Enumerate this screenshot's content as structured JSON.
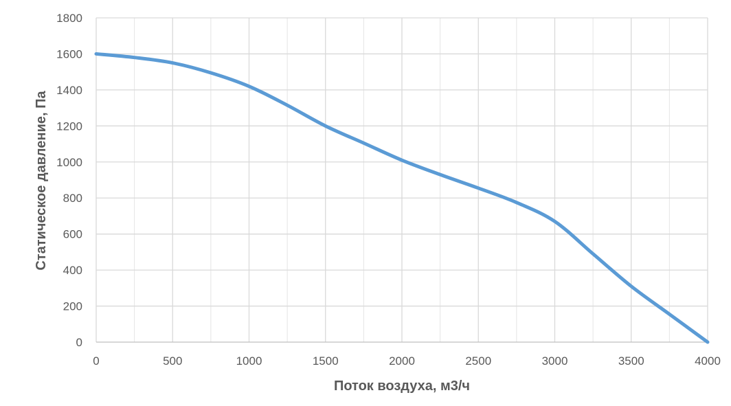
{
  "chart_data": {
    "type": "line",
    "title": "",
    "xlabel": "Поток воздуха, м3/ч",
    "ylabel": "Статическое давление, Па",
    "xlim": [
      0,
      4000
    ],
    "ylim": [
      0,
      1800
    ],
    "x_ticks": [
      0,
      500,
      1000,
      1500,
      2000,
      2500,
      3000,
      3500,
      4000
    ],
    "y_ticks": [
      0,
      200,
      400,
      600,
      800,
      1000,
      1200,
      1400,
      1600,
      1800
    ],
    "x_minor_gridlines": [
      250,
      750,
      1250,
      1750,
      2250,
      2750,
      3250,
      3750
    ],
    "grid": true,
    "legend": "none",
    "series": [
      {
        "color": "#5B9BD5",
        "x": [
          0,
          250,
          500,
          750,
          1000,
          1250,
          1500,
          1750,
          2000,
          2250,
          2500,
          2750,
          3000,
          3250,
          3500,
          3750,
          4000
        ],
        "y": [
          1600,
          1580,
          1550,
          1495,
          1420,
          1315,
          1200,
          1105,
          1010,
          930,
          855,
          775,
          670,
          490,
          310,
          155,
          0
        ]
      }
    ]
  }
}
